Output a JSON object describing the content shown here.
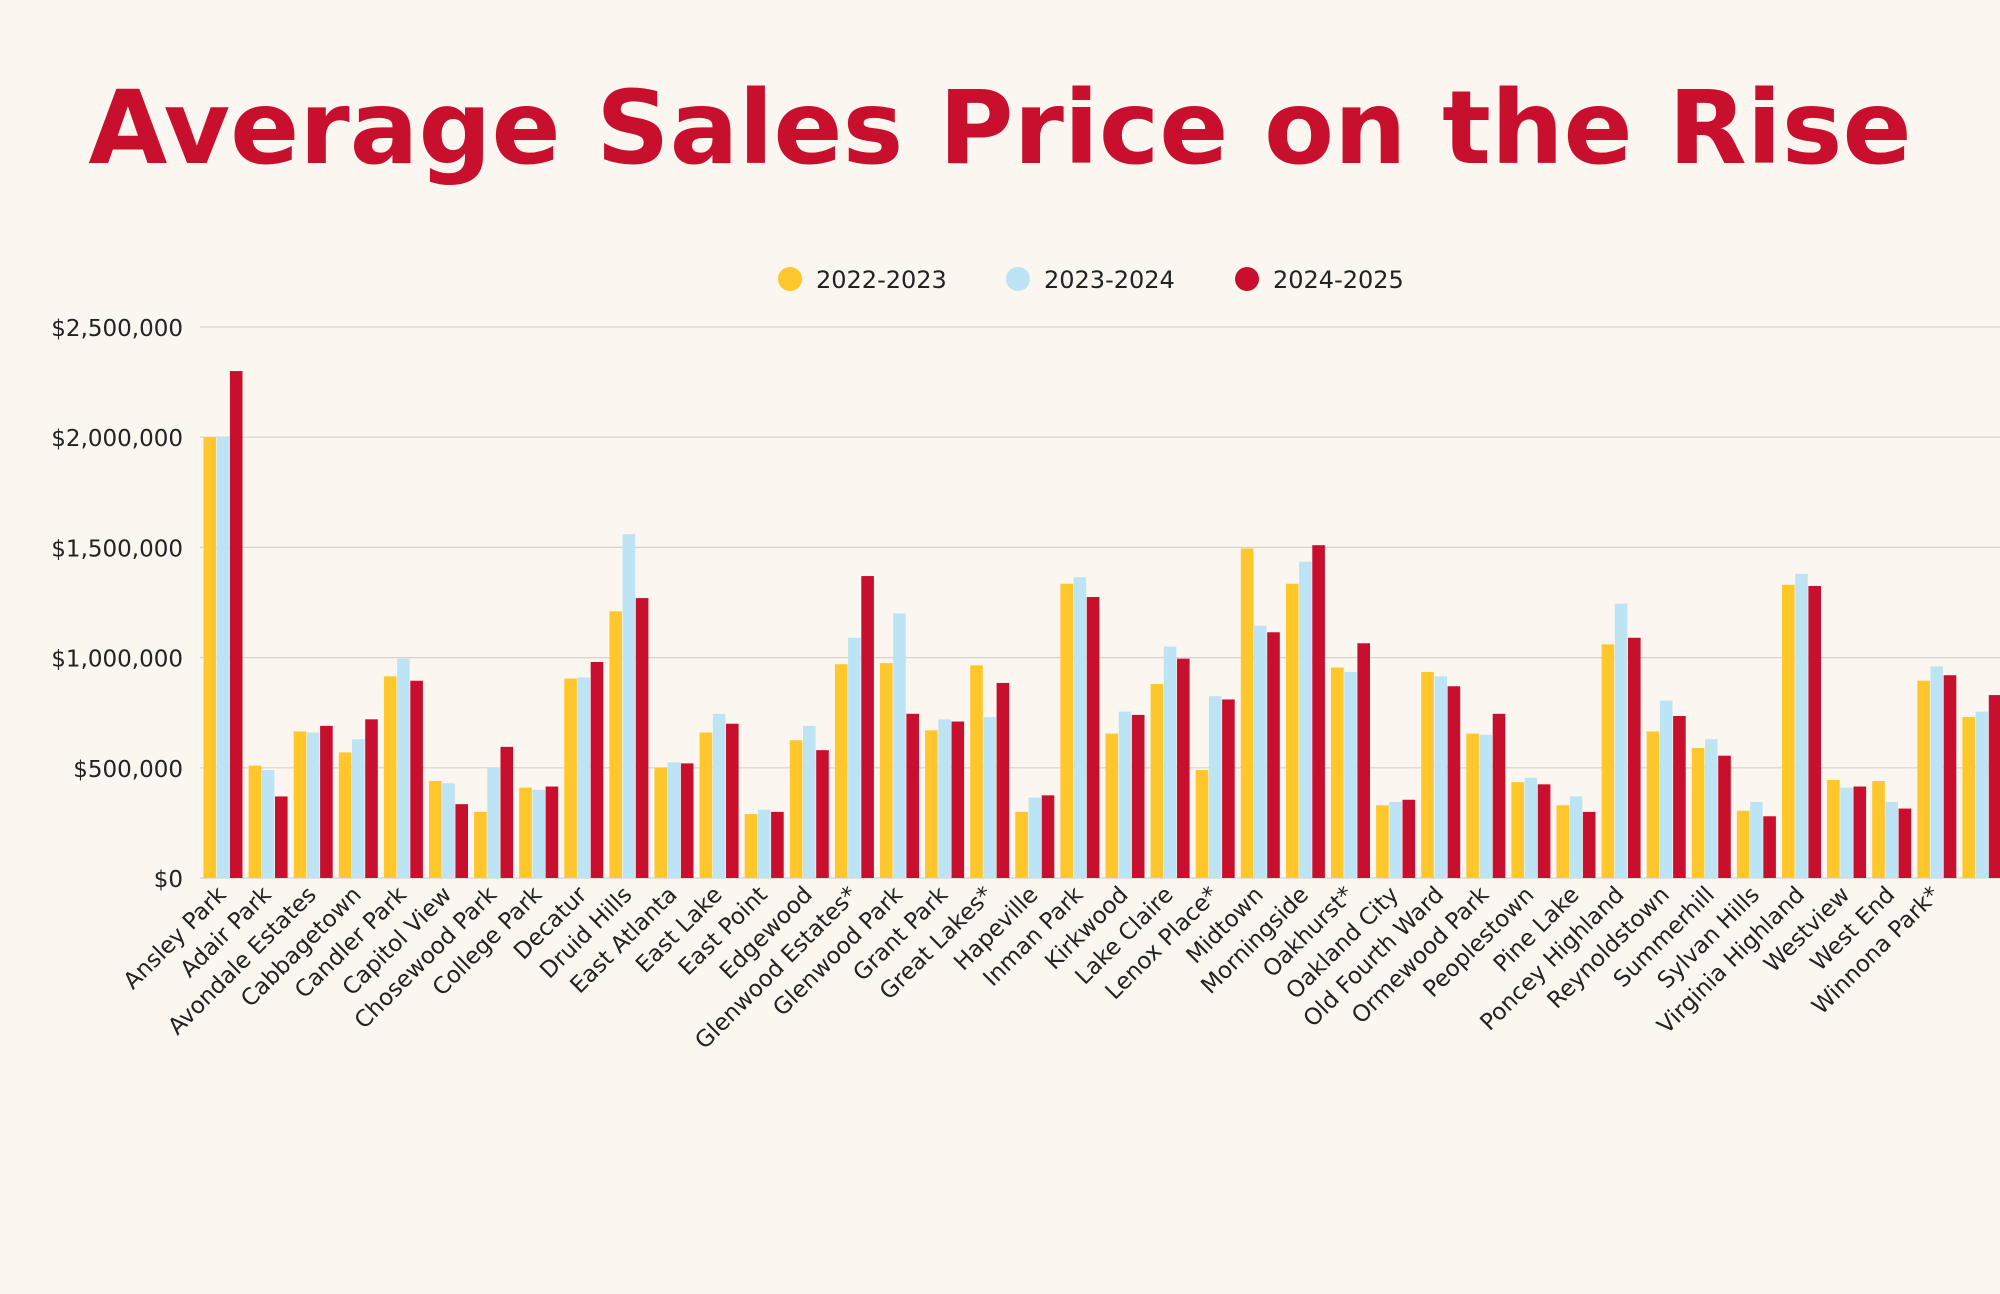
{
  "colors": {
    "background": "#FBF6F0",
    "title": "#C8102E",
    "series_2022": "#FFC72C",
    "series_2023": "#BDE4F4",
    "series_2024": "#C8102E",
    "gridline": "#D6D2CC",
    "text": "#222222"
  },
  "chart_data": {
    "type": "bar",
    "title": "Average Sales Price on the Rise",
    "xlabel": "",
    "ylabel": "",
    "ylim": [
      0,
      2500000
    ],
    "yticks": [
      0,
      500000,
      1000000,
      1500000,
      2000000,
      2500000
    ],
    "ytick_labels": [
      "$0",
      "$500,000",
      "$1,000,000",
      "$1,500,000",
      "$2,000,000",
      "$2,500,000"
    ],
    "grid": true,
    "legend_position": "top-center",
    "categories": [
      "Ansley Park",
      "Adair Park",
      "Avondale Estates",
      "Cabbagetown",
      "Candler Park",
      "Capitol View",
      "Chosewood Park",
      "College Park",
      "Decatur",
      "Druid Hills",
      "East Atlanta",
      "East Lake",
      "East Point",
      "Edgewood",
      "Glenwood Estates*",
      "Glenwood Park",
      "Grant Park",
      "Great Lakes*",
      "Hapeville",
      "Inman Park",
      "Kirkwood",
      "Lake Claire",
      "Lenox Place*",
      "Midtown",
      "Morningside",
      "Oakhurst*",
      "Oakland City",
      "Old Fourth Ward",
      "Ormewood Park",
      "Peoplestown",
      "Pine Lake",
      "Poncey Highland",
      "Reynoldstown",
      "Summerhill",
      "Sylvan Hills",
      "Virginia Highland",
      "Westview",
      "West End",
      "Winnona Park*",
      ""
    ],
    "series": [
      {
        "name": "2022-2023",
        "color": "#FFC72C",
        "values": [
          2000000,
          510000,
          665000,
          570000,
          915000,
          440000,
          300000,
          410000,
          905000,
          1210000,
          500000,
          660000,
          290000,
          625000,
          970000,
          975000,
          670000,
          965000,
          300000,
          1335000,
          655000,
          880000,
          490000,
          1495000,
          1335000,
          955000,
          330000,
          935000,
          655000,
          435000,
          330000,
          1060000,
          665000,
          590000,
          305000,
          1330000,
          445000,
          440000,
          895000,
          730000
        ]
      },
      {
        "name": "2023-2024",
        "color": "#BDE4F4",
        "values": [
          2000000,
          490000,
          660000,
          630000,
          995000,
          430000,
          500000,
          400000,
          910000,
          1560000,
          525000,
          745000,
          310000,
          690000,
          1090000,
          1200000,
          720000,
          730000,
          365000,
          1365000,
          755000,
          1050000,
          825000,
          1145000,
          1435000,
          935000,
          345000,
          915000,
          650000,
          455000,
          370000,
          1245000,
          805000,
          630000,
          345000,
          1380000,
          410000,
          345000,
          960000,
          755000
        ]
      },
      {
        "name": "2024-2025",
        "color": "#C8102E",
        "values": [
          2300000,
          370000,
          690000,
          720000,
          895000,
          335000,
          595000,
          415000,
          980000,
          1270000,
          520000,
          700000,
          300000,
          580000,
          1370000,
          745000,
          710000,
          885000,
          375000,
          1275000,
          740000,
          995000,
          810000,
          1115000,
          1510000,
          1065000,
          355000,
          870000,
          745000,
          425000,
          300000,
          1090000,
          735000,
          555000,
          280000,
          1325000,
          415000,
          315000,
          920000,
          830000
        ]
      }
    ]
  }
}
